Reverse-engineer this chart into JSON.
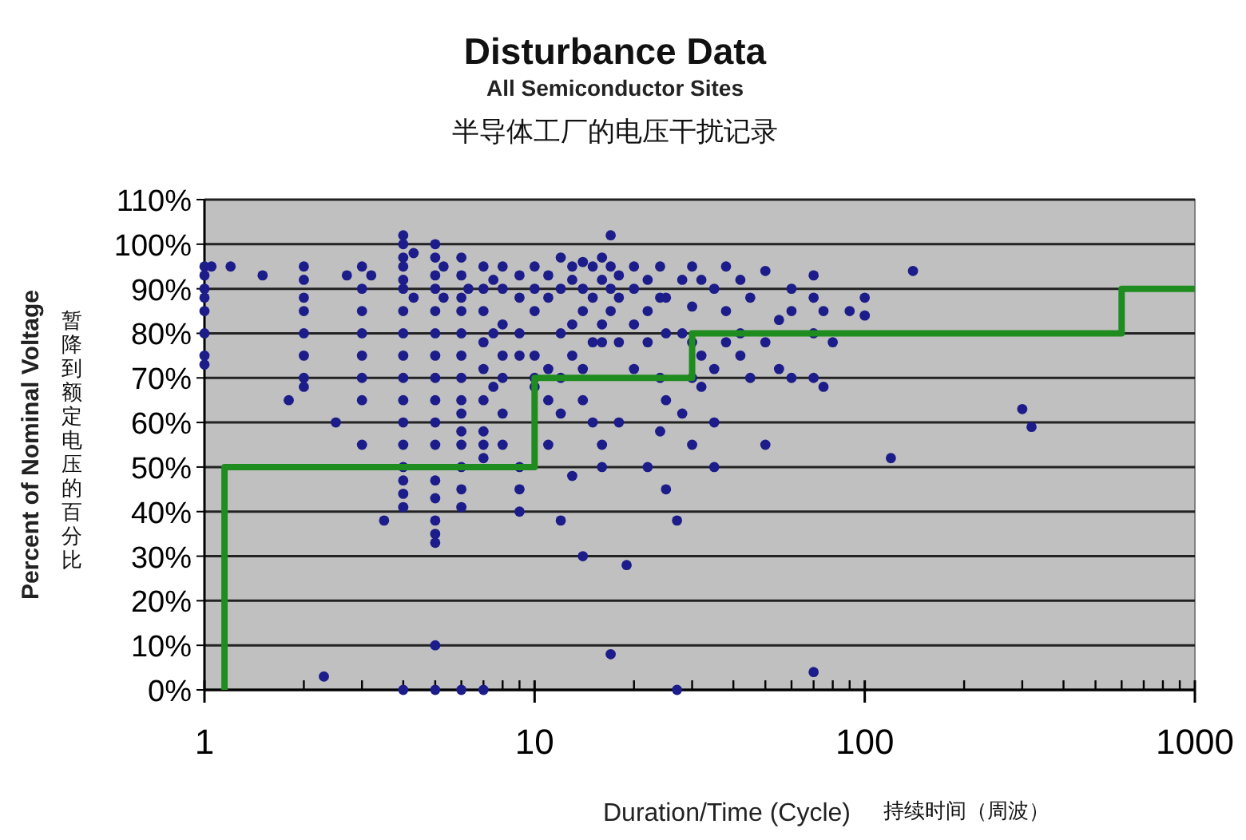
{
  "chart_data": {
    "type": "scatter",
    "title": "Disturbance Data",
    "subtitle": "All Semiconductor Sites",
    "xlabel": "Duration/Time (Cycle)",
    "ylabel": "Percent of Nominal Voltage",
    "annotations": [
      "半导体工厂的电压干扰记录",
      "暂降到额定电压的百分比",
      "持续时间（周波）"
    ],
    "log": "x",
    "xlim": [
      1,
      1000
    ],
    "xticks": [
      1,
      {
        "value": 2,
        "label": null
      },
      {
        "value": 3,
        "label": null
      },
      {
        "value": 4,
        "label": null
      },
      {
        "value": 5,
        "label": null
      },
      {
        "value": 6,
        "label": null
      },
      {
        "value": 7,
        "label": null
      },
      {
        "value": 8,
        "label": null
      },
      {
        "value": 9,
        "label": null
      },
      10,
      {
        "value": 20,
        "label": null
      },
      {
        "value": 30,
        "label": null
      },
      {
        "value": 40,
        "label": null
      },
      {
        "value": 50,
        "label": null
      },
      {
        "value": 60,
        "label": null
      },
      {
        "value": 70,
        "label": null
      },
      {
        "value": 80,
        "label": null
      },
      {
        "value": 90,
        "label": null
      },
      100,
      {
        "value": 200,
        "label": null
      },
      {
        "value": 300,
        "label": null
      },
      {
        "value": 400,
        "label": null
      },
      {
        "value": 500,
        "label": null
      },
      {
        "value": 600,
        "label": null
      },
      {
        "value": 700,
        "label": null
      },
      {
        "value": 800,
        "label": null
      },
      {
        "value": 900,
        "label": null
      },
      1000
    ],
    "ylim": [
      0,
      110
    ],
    "yticks": [
      {
        "value": 0,
        "label": "0%"
      },
      {
        "value": 10,
        "label": "10%"
      },
      {
        "value": 20,
        "label": "20%"
      },
      {
        "value": 30,
        "label": "30%"
      },
      {
        "value": 40,
        "label": "40%"
      },
      {
        "value": 50,
        "label": "50%"
      },
      {
        "value": 60,
        "label": "60%"
      },
      {
        "value": 70,
        "label": "70%"
      },
      {
        "value": 80,
        "label": "80%"
      },
      {
        "value": 90,
        "label": "90%"
      },
      {
        "value": 100,
        "label": "100%"
      },
      {
        "value": 110,
        "label": "110%"
      }
    ],
    "grid": "y",
    "marker": "circle",
    "series": [
      {
        "color": "#1c1c8a",
        "x": [
          1,
          1,
          1,
          1,
          1,
          1,
          1,
          1,
          1.05,
          1.2,
          1.5,
          1.8,
          2,
          2,
          2,
          2,
          2,
          2,
          2,
          2,
          2.3,
          2.5,
          2.7,
          3,
          3,
          3,
          3,
          3,
          3,
          3,
          3,
          3.2,
          3.5,
          4,
          4,
          4,
          4,
          4,
          4,
          4,
          4,
          4,
          4,
          4,
          4,
          4,
          4,
          4,
          4,
          4,
          4,
          4.3,
          4.3,
          5,
          5,
          5,
          5,
          5,
          5,
          5,
          5,
          5,
          5,
          5,
          5,
          5,
          5,
          5,
          5,
          5,
          5,
          5.3,
          5.3,
          6,
          6,
          6,
          6,
          6,
          6,
          6,
          6,
          6,
          6,
          6,
          6,
          6,
          6,
          6,
          6.3,
          7,
          7,
          7,
          7,
          7,
          7,
          7,
          7,
          7,
          7,
          7.5,
          7.5,
          7.5,
          8,
          8,
          8,
          8,
          8,
          8,
          8,
          9,
          9,
          9,
          9,
          9,
          9,
          9,
          10,
          10,
          10,
          10,
          10,
          10,
          11,
          11,
          11,
          11,
          11,
          12,
          12,
          12,
          12,
          12,
          12,
          13,
          13,
          13,
          13,
          13,
          14,
          14,
          14,
          14,
          14,
          14,
          15,
          15,
          15,
          15,
          16,
          16,
          16,
          16,
          16,
          16,
          17,
          17,
          17,
          17,
          17,
          18,
          18,
          18,
          18,
          19,
          20,
          20,
          20,
          20,
          22,
          22,
          22,
          22,
          24,
          24,
          24,
          24,
          25,
          25,
          25,
          25,
          27,
          27,
          28,
          28,
          28,
          30,
          30,
          30,
          30,
          30,
          32,
          32,
          32,
          35,
          35,
          35,
          35,
          38,
          38,
          38,
          42,
          42,
          42,
          45,
          45,
          50,
          50,
          50,
          55,
          55,
          60,
          60,
          60,
          70,
          70,
          70,
          70,
          70,
          75,
          75,
          80,
          90,
          100,
          100,
          120,
          140,
          300,
          320
        ],
        "values": [
          95,
          93,
          90,
          88,
          85,
          80,
          75,
          73,
          95,
          95,
          93,
          65,
          95,
          92,
          88,
          85,
          80,
          75,
          70,
          68,
          3,
          60,
          93,
          95,
          90,
          85,
          80,
          75,
          70,
          65,
          55,
          93,
          38,
          102,
          100,
          97,
          95,
          92,
          90,
          85,
          80,
          75,
          70,
          65,
          60,
          55,
          50,
          47,
          44,
          41,
          0,
          98,
          88,
          100,
          97,
          93,
          90,
          85,
          80,
          75,
          70,
          65,
          60,
          55,
          47,
          43,
          38,
          35,
          33,
          10,
          0,
          95,
          88,
          97,
          93,
          88,
          85,
          80,
          75,
          70,
          65,
          62,
          58,
          55,
          50,
          45,
          41,
          0,
          90,
          95,
          90,
          85,
          78,
          72,
          65,
          58,
          55,
          52,
          0,
          92,
          80,
          68,
          95,
          90,
          82,
          75,
          70,
          62,
          55,
          93,
          88,
          80,
          75,
          50,
          45,
          40,
          95,
          90,
          85,
          75,
          70,
          68,
          93,
          88,
          72,
          65,
          55,
          97,
          90,
          80,
          70,
          62,
          38,
          95,
          92,
          82,
          75,
          48,
          96,
          90,
          85,
          72,
          65,
          30,
          95,
          88,
          78,
          60,
          97,
          92,
          82,
          78,
          55,
          50,
          102,
          95,
          90,
          85,
          8,
          93,
          88,
          78,
          60,
          28,
          95,
          90,
          82,
          72,
          92,
          85,
          78,
          50,
          95,
          88,
          70,
          58,
          88,
          80,
          65,
          45,
          38,
          0,
          92,
          80,
          62,
          95,
          86,
          78,
          70,
          55,
          92,
          75,
          68,
          90,
          72,
          60,
          50,
          95,
          85,
          78,
          92,
          80,
          75,
          88,
          70,
          94,
          78,
          55,
          83,
          72,
          90,
          85,
          70,
          93,
          88,
          80,
          70,
          4,
          85,
          68,
          78,
          85,
          88,
          84,
          52,
          94,
          63,
          59
        ]
      },
      {
        "type": "line",
        "color": "#1f8c1f",
        "marker": "none",
        "x": [
          1.15,
          1.15,
          10,
          10,
          30,
          30,
          600,
          600,
          1000
        ],
        "values": [
          0,
          50,
          50,
          70,
          70,
          80,
          80,
          90,
          90
        ]
      }
    ]
  }
}
